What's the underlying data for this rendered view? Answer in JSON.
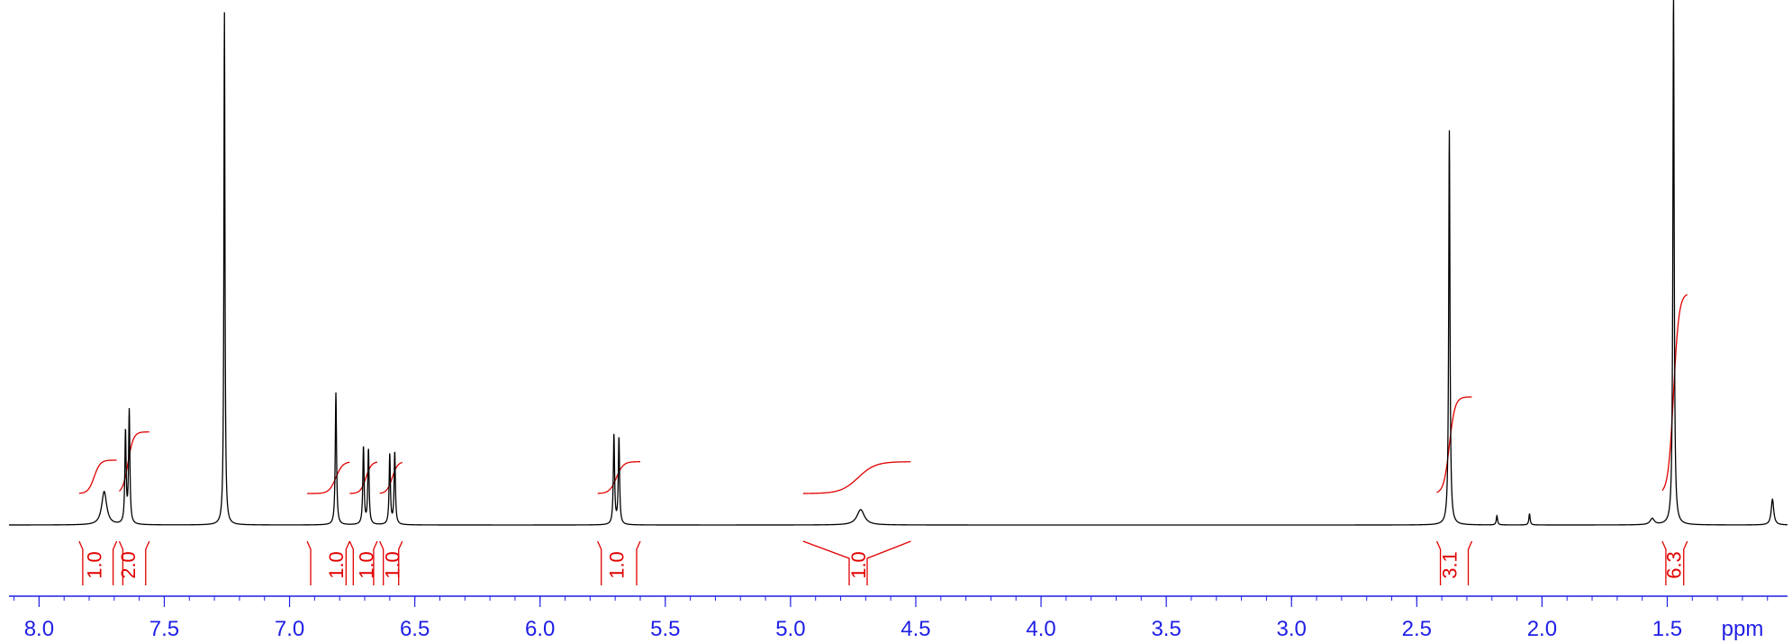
{
  "chart_data": {
    "type": "line",
    "title": "",
    "xlabel": "ppm",
    "ylabel": "",
    "xlim": [
      8.12,
      1.02
    ],
    "x_reversed": true,
    "grid": false,
    "legend": "none",
    "x_ticks": [
      "8.0",
      "7.5",
      "7.0",
      "6.5",
      "6.0",
      "5.5",
      "5.0",
      "4.5",
      "4.0",
      "3.5",
      "3.0",
      "2.5",
      "2.0",
      "1.5"
    ],
    "colors": {
      "axis": "#1f1fe6",
      "trace": "#000000",
      "integral": "#e10000"
    },
    "peaks": [
      {
        "ppm": 7.74,
        "height": 0.065,
        "width": 0.012
      },
      {
        "ppm": 7.655,
        "height": 0.18,
        "width": 0.003
      },
      {
        "ppm": 7.64,
        "height": 0.22,
        "width": 0.003
      },
      {
        "ppm": 7.26,
        "height": 1.0,
        "width": 0.0025
      },
      {
        "ppm": 6.815,
        "height": 0.258,
        "width": 0.003
      },
      {
        "ppm": 6.705,
        "height": 0.152,
        "width": 0.003
      },
      {
        "ppm": 6.685,
        "height": 0.146,
        "width": 0.003
      },
      {
        "ppm": 6.6,
        "height": 0.137,
        "width": 0.003
      },
      {
        "ppm": 6.58,
        "height": 0.141,
        "width": 0.003
      },
      {
        "ppm": 5.705,
        "height": 0.174,
        "width": 0.003
      },
      {
        "ppm": 5.685,
        "height": 0.169,
        "width": 0.003
      },
      {
        "ppm": 4.72,
        "height": 0.03,
        "width": 0.018
      },
      {
        "ppm": 2.37,
        "height": 0.77,
        "width": 0.003
      },
      {
        "ppm": 2.18,
        "height": 0.018,
        "width": 0.003
      },
      {
        "ppm": 2.05,
        "height": 0.022,
        "width": 0.003
      },
      {
        "ppm": 1.56,
        "height": 0.012,
        "width": 0.01
      },
      {
        "ppm": 1.475,
        "height": 1.04,
        "width": 0.003
      },
      {
        "ppm": 1.08,
        "height": 0.05,
        "width": 0.006
      }
    ],
    "integrals": [
      {
        "label": "1.0",
        "from": 7.84,
        "to": 7.69,
        "center": 7.78,
        "rise": 0.065
      },
      {
        "label": "2.0",
        "from": 7.68,
        "to": 7.56,
        "center": 7.645,
        "rise": 0.12
      },
      {
        "label": "1.0",
        "from": 6.93,
        "to": 6.76,
        "center": 6.815,
        "rise": 0.062
      },
      {
        "label": "1.0",
        "from": 6.76,
        "to": 6.65,
        "center": 6.695,
        "rise": 0.062
      },
      {
        "label": "1.0",
        "from": 6.64,
        "to": 6.55,
        "center": 6.59,
        "rise": 0.062
      },
      {
        "label": "1.0",
        "from": 5.77,
        "to": 5.6,
        "center": 5.695,
        "rise": 0.062
      },
      {
        "label": "1.0",
        "from": 4.95,
        "to": 4.52,
        "center": 4.73,
        "rise": 0.062
      },
      {
        "label": "3.1",
        "from": 2.42,
        "to": 2.28,
        "center": 2.37,
        "rise": 0.188
      },
      {
        "label": "6.3",
        "from": 1.52,
        "to": 1.42,
        "center": 1.475,
        "rise": 0.39
      }
    ]
  }
}
